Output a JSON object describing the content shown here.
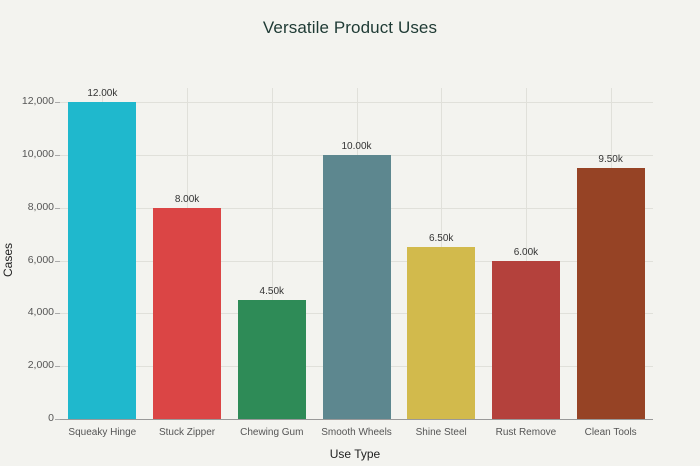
{
  "title": "Versatile Product Uses",
  "chart_data": {
    "type": "bar",
    "title": "Versatile Product Uses",
    "xlabel": "Use Type",
    "ylabel": "Cases",
    "categories": [
      "Squeaky Hinge",
      "Stuck Zipper",
      "Chewing Gum",
      "Smooth Wheels",
      "Shine Steel",
      "Rust Remove",
      "Clean Tools"
    ],
    "values": [
      12000,
      8000,
      4500,
      10000,
      6500,
      6000,
      9500
    ],
    "data_labels": [
      "12.00k",
      "8.00k",
      "4.50k",
      "10.00k",
      "6.50k",
      "6.00k",
      "9.50k"
    ],
    "colors": [
      "#1fb8cd",
      "#db4545",
      "#2e8b57",
      "#5d878f",
      "#d2ba4c",
      "#b4413c",
      "#964325"
    ],
    "yticks": [
      "0",
      "2,000",
      "4,000",
      "6,000",
      "8,000",
      "10,000",
      "12,000"
    ],
    "ylim": [
      0,
      12600
    ],
    "grid": true,
    "legend": false
  }
}
